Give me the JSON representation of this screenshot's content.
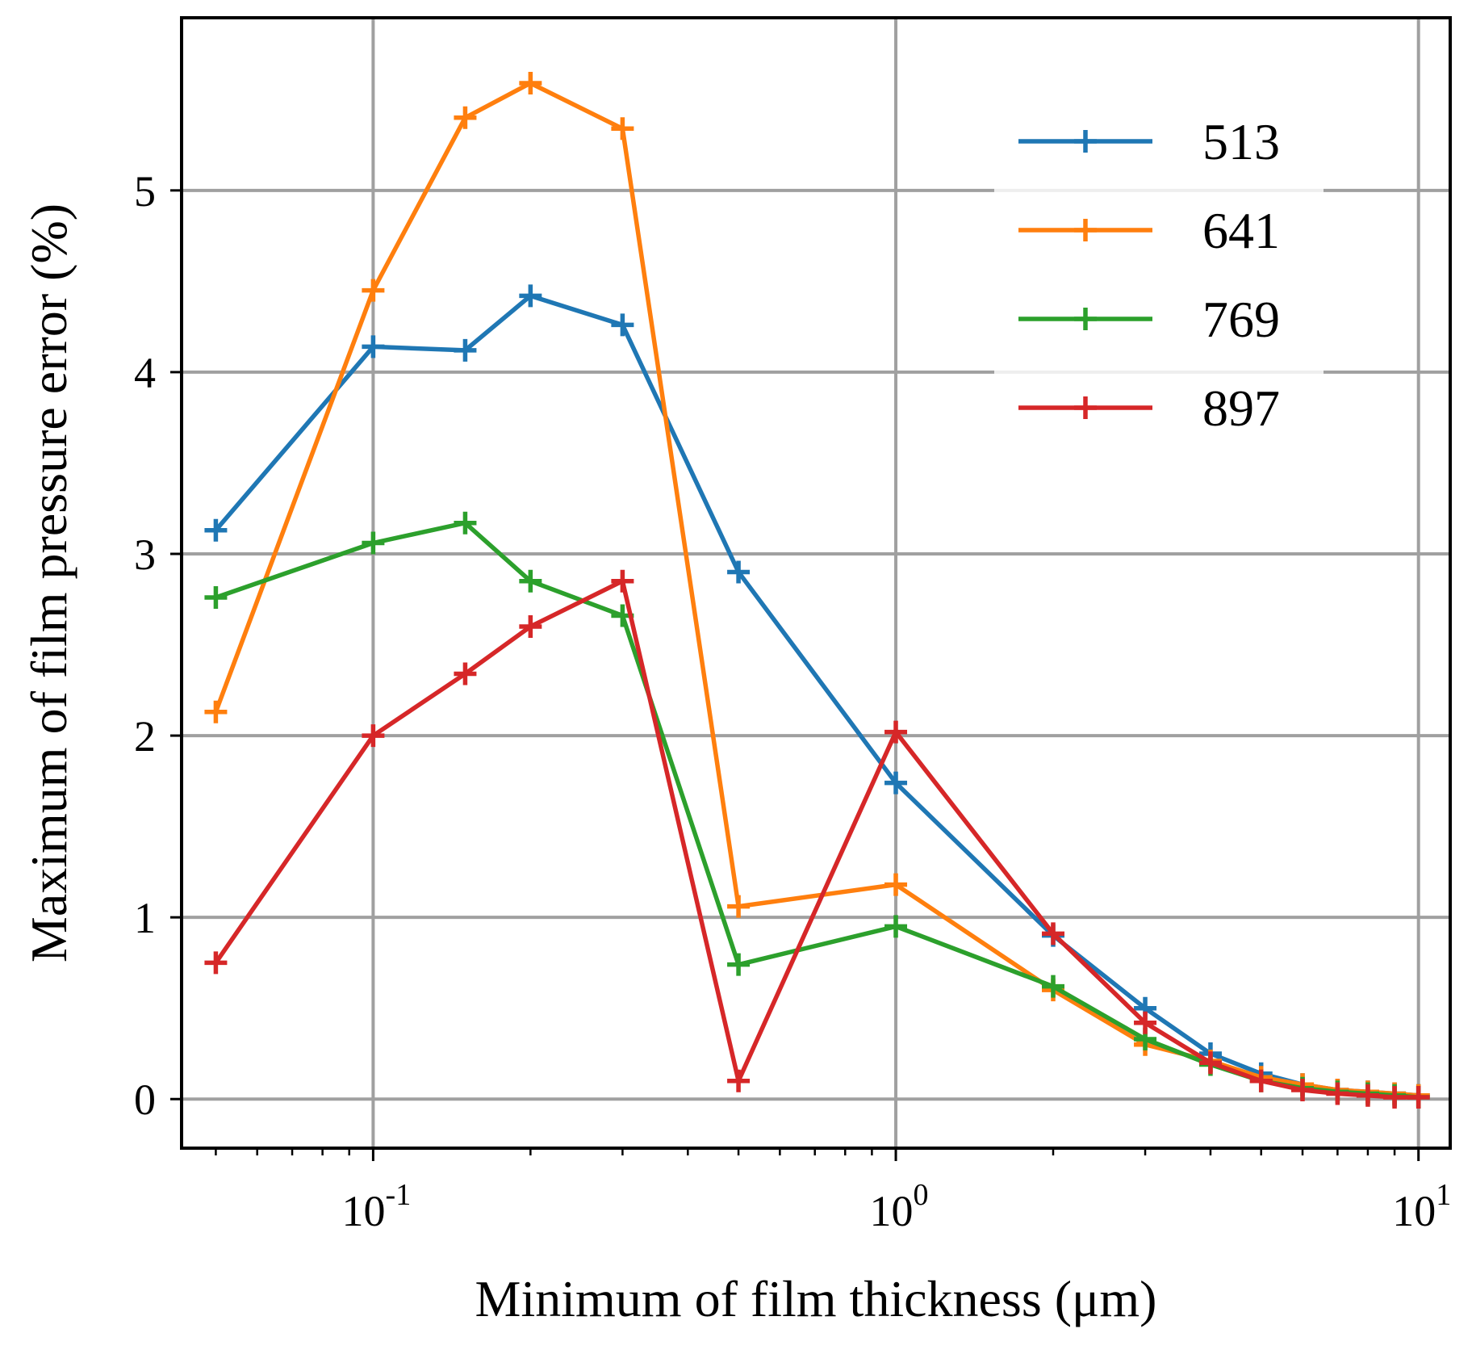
{
  "chart_data": {
    "type": "line",
    "title": "",
    "xlabel": "Minimum of film thickness (μm)",
    "ylabel": "Maximum of film pressure error (%)",
    "x_scale": "log",
    "xlim": [
      0.043,
      11.5
    ],
    "ylim": [
      -0.27,
      5.95
    ],
    "grid": true,
    "legend_position": "top-right",
    "x": [
      0.05,
      0.1,
      0.15,
      0.2,
      0.3,
      0.5,
      1,
      2,
      3,
      4,
      5,
      6,
      7,
      8,
      9,
      10
    ],
    "x_ticks": [
      {
        "value": 0.1,
        "base": "10",
        "exp": "-1"
      },
      {
        "value": 1,
        "base": "10",
        "exp": "0"
      },
      {
        "value": 10,
        "base": "10",
        "exp": "1"
      }
    ],
    "y_ticks": [
      {
        "value": 0,
        "label": "0"
      },
      {
        "value": 1,
        "label": "1"
      },
      {
        "value": 2,
        "label": "2"
      },
      {
        "value": 3,
        "label": "3"
      },
      {
        "value": 4,
        "label": "4"
      },
      {
        "value": 5,
        "label": "5"
      }
    ],
    "series": [
      {
        "name": "513",
        "color": "#1f77b4",
        "values": [
          3.13,
          4.14,
          4.12,
          4.42,
          4.26,
          2.9,
          1.74,
          0.9,
          0.5,
          0.25,
          0.14,
          0.08,
          0.05,
          0.04,
          0.03,
          0.02
        ]
      },
      {
        "name": "641",
        "color": "#ff7f0e",
        "values": [
          2.13,
          4.45,
          5.4,
          5.59,
          5.34,
          1.06,
          1.18,
          0.6,
          0.3,
          0.21,
          0.12,
          0.08,
          0.05,
          0.04,
          0.03,
          0.02
        ]
      },
      {
        "name": "769",
        "color": "#2ca02c",
        "values": [
          2.76,
          3.06,
          3.17,
          2.85,
          2.66,
          0.74,
          0.95,
          0.62,
          0.33,
          0.19,
          0.1,
          0.06,
          0.04,
          0.03,
          0.02,
          0.01
        ]
      },
      {
        "name": "897",
        "color": "#d62728",
        "values": [
          0.75,
          2.0,
          2.34,
          2.6,
          2.85,
          0.1,
          2.02,
          0.91,
          0.42,
          0.2,
          0.1,
          0.05,
          0.03,
          0.02,
          0.01,
          0.01
        ]
      }
    ]
  }
}
